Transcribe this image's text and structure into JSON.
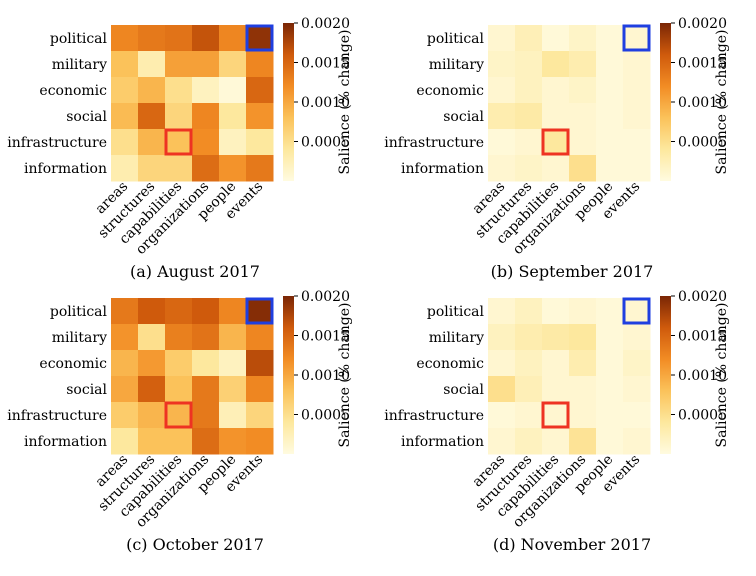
{
  "chart_data": [
    {
      "type": "heatmap",
      "caption": "(a) August 2017",
      "rows": [
        "political",
        "military",
        "economic",
        "social",
        "infrastructure",
        "information"
      ],
      "columns": [
        "areas",
        "structures",
        "capabilities",
        "organizations",
        "people",
        "events"
      ],
      "values": [
        [
          0.00125,
          0.00135,
          0.0014,
          0.00165,
          0.00125,
          0.0019
        ],
        [
          0.0008,
          0.0003,
          0.00105,
          0.00105,
          0.0006,
          0.00125
        ],
        [
          0.0007,
          0.0009,
          0.0005,
          0.0002,
          5e-05,
          0.0015
        ],
        [
          0.00085,
          0.0015,
          0.0006,
          0.00125,
          0.0004,
          0.00115
        ],
        [
          0.0005,
          0.0009,
          0.0008,
          0.0012,
          0.0002,
          0.0004
        ],
        [
          0.0003,
          0.0006,
          0.0006,
          0.00145,
          0.00115,
          0.00135
        ]
      ],
      "highlights": [
        {
          "row": "political",
          "column": "events",
          "color": "#1f3fe0"
        },
        {
          "row": "infrastructure",
          "column": "capabilities",
          "color": "#ee3322"
        }
      ],
      "colorbar": {
        "label": "Salience (% change)",
        "range": [
          0,
          0.002
        ],
        "ticks": [
          "0.0005",
          "0.0010",
          "0.0015",
          "0.0020"
        ]
      }
    },
    {
      "type": "heatmap",
      "caption": "(b) September 2017",
      "rows": [
        "political",
        "military",
        "economic",
        "social",
        "infrastructure",
        "information"
      ],
      "columns": [
        "areas",
        "structures",
        "capabilities",
        "organizations",
        "people",
        "events"
      ],
      "values": [
        [
          0.0001,
          0.00025,
          5e-05,
          0.00015,
          5e-05,
          0.0001
        ],
        [
          0.00015,
          0.0002,
          0.0004,
          0.0003,
          5e-05,
          0.0001
        ],
        [
          0.0001,
          0.0002,
          0.0001,
          0.00015,
          5e-05,
          0.0001
        ],
        [
          0.0003,
          0.00035,
          0.0001,
          0.0001,
          5e-05,
          0.0001
        ],
        [
          5e-05,
          0.0001,
          0.0004,
          0.0001,
          5e-05,
          5e-05
        ],
        [
          0.0001,
          0.00015,
          0.0001,
          0.0005,
          5e-05,
          5e-05
        ]
      ],
      "highlights": [
        {
          "row": "political",
          "column": "events",
          "color": "#1f3fe0"
        },
        {
          "row": "infrastructure",
          "column": "capabilities",
          "color": "#ee3322"
        }
      ],
      "colorbar": {
        "label": "Salience (% change)",
        "range": [
          0,
          0.002
        ],
        "ticks": [
          "0.0005",
          "0.0010",
          "0.0015",
          "0.0020"
        ]
      }
    },
    {
      "type": "heatmap",
      "caption": "(c) October 2017",
      "rows": [
        "political",
        "military",
        "economic",
        "social",
        "infrastructure",
        "information"
      ],
      "columns": [
        "areas",
        "structures",
        "capabilities",
        "organizations",
        "people",
        "events"
      ],
      "values": [
        [
          0.00135,
          0.0016,
          0.0015,
          0.0016,
          0.00125,
          0.00195
        ],
        [
          0.00115,
          0.0005,
          0.0013,
          0.0014,
          0.0009,
          0.00125
        ],
        [
          0.0009,
          0.0011,
          0.0007,
          0.0004,
          0.0002,
          0.0017
        ],
        [
          0.001,
          0.00155,
          0.0008,
          0.00135,
          0.00065,
          0.00125
        ],
        [
          0.0007,
          0.0009,
          0.0009,
          0.00135,
          0.00025,
          0.0006
        ],
        [
          0.0004,
          0.0008,
          0.0008,
          0.00145,
          0.00115,
          0.0012
        ]
      ],
      "highlights": [
        {
          "row": "political",
          "column": "events",
          "color": "#1f3fe0"
        },
        {
          "row": "infrastructure",
          "column": "capabilities",
          "color": "#ee3322"
        }
      ],
      "colorbar": {
        "label": "Salience (% change)",
        "range": [
          0,
          0.002
        ],
        "ticks": [
          "0.0005",
          "0.0010",
          "0.0015",
          "0.0020"
        ]
      }
    },
    {
      "type": "heatmap",
      "caption": "(d) November 2017",
      "rows": [
        "political",
        "military",
        "economic",
        "social",
        "infrastructure",
        "information"
      ],
      "columns": [
        "areas",
        "structures",
        "capabilities",
        "organizations",
        "people",
        "events"
      ],
      "values": [
        [
          0.0001,
          0.0002,
          5e-05,
          0.0001,
          5e-05,
          0.0001
        ],
        [
          0.0002,
          0.0003,
          0.00035,
          0.0004,
          5e-05,
          0.0001
        ],
        [
          0.0001,
          0.0002,
          0.0001,
          0.0003,
          5e-05,
          0.00015
        ],
        [
          0.0005,
          0.00025,
          0.0001,
          0.0001,
          5e-05,
          0.0001
        ],
        [
          5e-05,
          0.0001,
          0.0001,
          0.0001,
          5e-05,
          5e-05
        ],
        [
          0.0001,
          0.0002,
          0.0001,
          0.00045,
          5e-05,
          0.0001
        ]
      ],
      "highlights": [
        {
          "row": "political",
          "column": "events",
          "color": "#1f3fe0"
        },
        {
          "row": "infrastructure",
          "column": "capabilities",
          "color": "#ee3322"
        }
      ],
      "colorbar": {
        "label": "Salience (% change)",
        "range": [
          0,
          0.002
        ],
        "ticks": [
          "0.0005",
          "0.0010",
          "0.0015",
          "0.0020"
        ]
      }
    }
  ]
}
